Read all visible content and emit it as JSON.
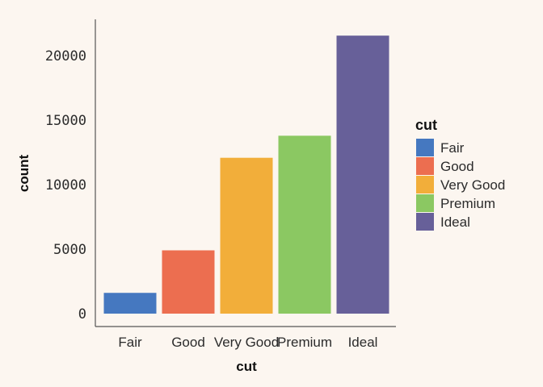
{
  "chart_data": {
    "type": "bar",
    "categories": [
      "Fair",
      "Good",
      "Very Good",
      "Premium",
      "Ideal"
    ],
    "values": [
      1610,
      4906,
      12082,
      13791,
      21551
    ],
    "colors": [
      "#4578c0",
      "#ec6e50",
      "#f2ae3a",
      "#8bc862",
      "#676099"
    ],
    "xlabel": "cut",
    "ylabel": "count",
    "ylim": [
      0,
      22000
    ],
    "yticks": [
      0,
      5000,
      10000,
      15000,
      20000
    ],
    "ytick_labels": [
      "0",
      "5000",
      "10000",
      "15000",
      "20000"
    ],
    "grid": false,
    "legend": {
      "title": "cut",
      "position": "right",
      "entries": [
        "Fair",
        "Good",
        "Very Good",
        "Premium",
        "Ideal"
      ]
    }
  }
}
